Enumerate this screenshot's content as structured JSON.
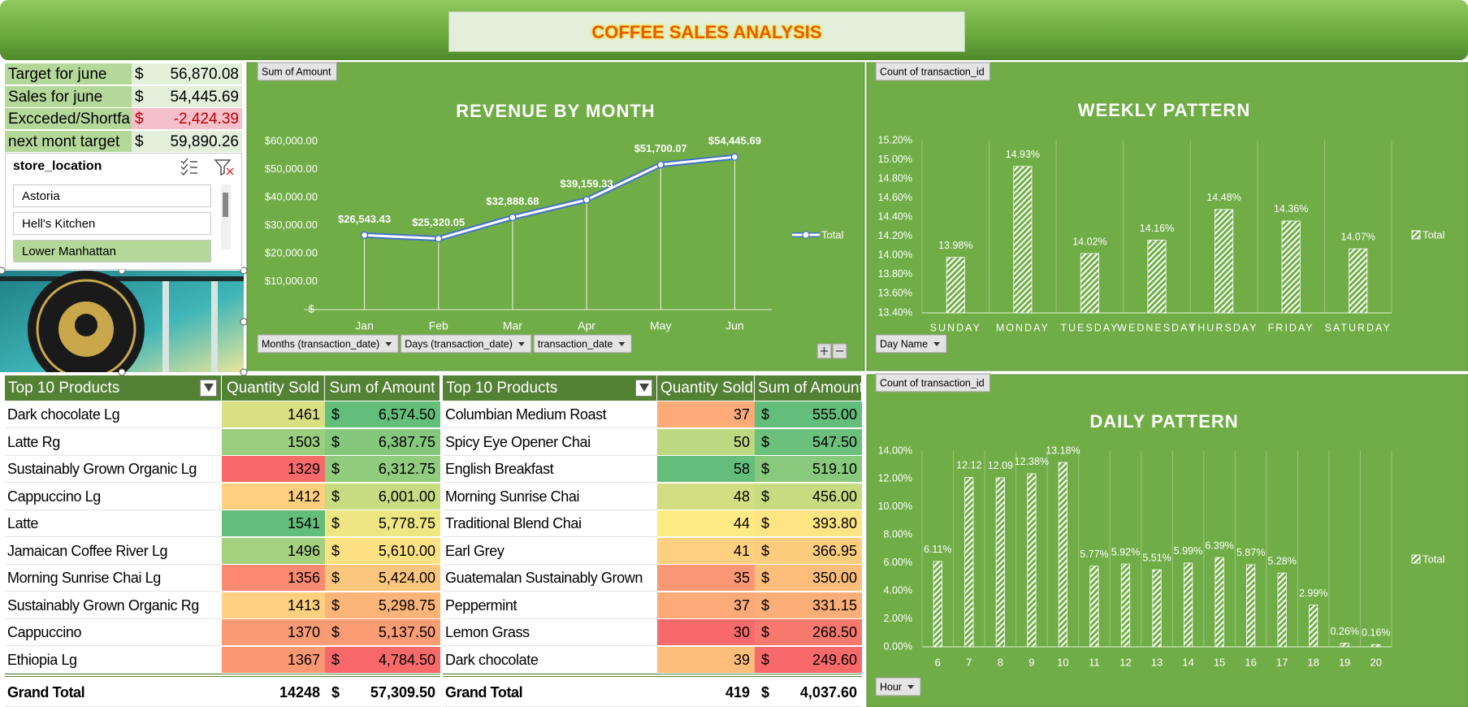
{
  "header": {
    "title": "COFFEE SALES ANALYSIS"
  },
  "kpis": {
    "rows": [
      [
        "Target for june",
        "$",
        "56,870.08"
      ],
      [
        "Sales for june",
        "$",
        "54,445.69"
      ],
      [
        "Excceded/Shortfa",
        "$",
        "-2,424.39"
      ],
      [
        "next mont target",
        "$",
        "59,890.26"
      ]
    ]
  },
  "slicer": {
    "title": "store_location",
    "items": [
      "Astoria",
      "Hell's Kitchen",
      "Lower Manhattan"
    ],
    "selected": 2
  },
  "tables": [
    {
      "header": [
        "Top 10 Products",
        "Quantity Sold",
        "Sum of Amount"
      ],
      "rows": [
        [
          "Dark chocolate Lg",
          1461,
          "$",
          "6,574.50"
        ],
        [
          "Latte Rg",
          1503,
          "$",
          "6,387.75"
        ],
        [
          "Sustainably Grown Organic Lg",
          1329,
          "$",
          "6,312.75"
        ],
        [
          "Cappuccino Lg",
          1412,
          "$",
          "6,001.00"
        ],
        [
          "Latte",
          1541,
          "$",
          "5,778.75"
        ],
        [
          "Jamaican Coffee River Lg",
          1496,
          "$",
          "5,610.00"
        ],
        [
          "Morning Sunrise Chai Lg",
          1356,
          "$",
          "5,424.00"
        ],
        [
          "Sustainably Grown Organic Rg",
          1413,
          "$",
          "5,298.75"
        ],
        [
          "Cappuccino",
          1370,
          "$",
          "5,137.50"
        ],
        [
          "Ethiopia Lg",
          1367,
          "$",
          "4,784.50"
        ]
      ],
      "total": [
        "Grand Total",
        14248,
        "$",
        "57,309.50"
      ]
    },
    {
      "header": [
        "Top 10 Products",
        "Quantity Sold",
        "Sum of Amount"
      ],
      "rows": [
        [
          "Columbian Medium Roast",
          37,
          "$",
          "555.00"
        ],
        [
          "Spicy Eye Opener Chai",
          50,
          "$",
          "547.50"
        ],
        [
          "English Breakfast",
          58,
          "$",
          "519.10"
        ],
        [
          "Morning Sunrise Chai",
          48,
          "$",
          "456.00"
        ],
        [
          "Traditional Blend Chai",
          44,
          "$",
          "393.80"
        ],
        [
          "Earl Grey",
          41,
          "$",
          "366.95"
        ],
        [
          "Guatemalan Sustainably Grown",
          35,
          "$",
          "350.00"
        ],
        [
          "Peppermint",
          37,
          "$",
          "331.15"
        ],
        [
          "Lemon Grass",
          30,
          "$",
          "268.50"
        ],
        [
          "Dark chocolate",
          39,
          "$",
          "249.60"
        ]
      ],
      "total": [
        "Grand Total",
        419,
        "$",
        "4,037.60"
      ]
    }
  ],
  "chart_data": [
    {
      "type": "line",
      "title": "REVENUE BY MONTH",
      "button": "Sum of Amount",
      "fields": [
        "Months (transaction_date)",
        "Days (transaction_date)",
        "transaction_date"
      ],
      "categories": [
        "Jan",
        "Feb",
        "Mar",
        "Apr",
        "May",
        "Jun"
      ],
      "series": [
        {
          "name": "Total",
          "color": "#ffffff",
          "outline": "#4472c4",
          "values": [
            26543.43,
            25320.05,
            32888.68,
            39159.33,
            51700.07,
            54445.69
          ],
          "value_labels": [
            "$26,543.43",
            "$25,320.05",
            "$32,888.68",
            "$39,159.33",
            "$51,700.07",
            "$54,445.69"
          ]
        }
      ],
      "ylim": [
        0,
        60000
      ],
      "yticks": [
        {
          "value": 0,
          "label": "$-"
        },
        {
          "value": 10000,
          "label": "$10,000.00"
        },
        {
          "value": 20000,
          "label": "$20,000.00"
        },
        {
          "value": 30000,
          "label": "$30,000.00"
        },
        {
          "value": 40000,
          "label": "$40,000.00"
        },
        {
          "value": 50000,
          "label": "$50,000.00"
        },
        {
          "value": 60000,
          "label": "$60,000.00"
        }
      ],
      "grid": false,
      "drop_lines": true,
      "legend": "right"
    },
    {
      "type": "bar",
      "title": "WEEKLY PATTERN",
      "button": "Count of transaction_id",
      "fields": [
        "Day Name"
      ],
      "categories": [
        "SUNDAY",
        "MONDAY",
        "TUESDAY",
        "WEDNESDAY",
        "THURSDAY",
        "FRIDAY",
        "SATURDAY"
      ],
      "series": [
        {
          "name": "Total",
          "color": "#ffffff",
          "values": [
            13.98,
            14.93,
            14.02,
            14.16,
            14.48,
            14.36,
            14.07
          ],
          "value_labels": [
            "13.98%",
            "14.93%",
            "14.02%",
            "14.16%",
            "14.48%",
            "14.36%",
            "14.07%"
          ]
        }
      ],
      "ylim": [
        13.4,
        15.2
      ],
      "yticks": [
        {
          "value": 13.4,
          "label": "13.40%"
        },
        {
          "value": 13.6,
          "label": "13.60%"
        },
        {
          "value": 13.8,
          "label": "13.80%"
        },
        {
          "value": 14.0,
          "label": "14.00%"
        },
        {
          "value": 14.2,
          "label": "14.20%"
        },
        {
          "value": 14.4,
          "label": "14.40%"
        },
        {
          "value": 14.6,
          "label": "14.60%"
        },
        {
          "value": 14.8,
          "label": "14.80%"
        },
        {
          "value": 15.0,
          "label": "15.00%"
        },
        {
          "value": 15.2,
          "label": "15.20%"
        }
      ],
      "grid": false,
      "legend": "right"
    },
    {
      "type": "bar",
      "title": "DAILY PATTERN",
      "button": "Count of transaction_id",
      "fields": [
        "Hour"
      ],
      "categories": [
        "6",
        "7",
        "8",
        "9",
        "10",
        "11",
        "12",
        "13",
        "14",
        "15",
        "16",
        "17",
        "18",
        "19",
        "20"
      ],
      "series": [
        {
          "name": "Total",
          "color": "#ffffff",
          "values": [
            6.11,
            12.12,
            12.09,
            12.38,
            13.18,
            5.77,
            5.92,
            5.51,
            5.99,
            6.39,
            5.87,
            5.28,
            2.99,
            0.26,
            0.16
          ],
          "value_labels": [
            "6.11%",
            "12.12",
            "12.09",
            "12.38%",
            "13.18%",
            "5.77%",
            "5.92%",
            "5.51%",
            "5.99%",
            "6.39%",
            "5.87%",
            "5.28%",
            "2.99%",
            "0.26%",
            "0.16%"
          ]
        }
      ],
      "ylim": [
        0,
        14
      ],
      "yticks": [
        {
          "value": 0,
          "label": "0.00%"
        },
        {
          "value": 2,
          "label": "2.00%"
        },
        {
          "value": 4,
          "label": "4.00%"
        },
        {
          "value": 6,
          "label": "6.00%"
        },
        {
          "value": 8,
          "label": "8.00%"
        },
        {
          "value": 10,
          "label": "10.00%"
        },
        {
          "value": 12,
          "label": "12.00%"
        },
        {
          "value": 14,
          "label": "14.00%"
        }
      ],
      "grid": false,
      "legend": "right"
    }
  ]
}
